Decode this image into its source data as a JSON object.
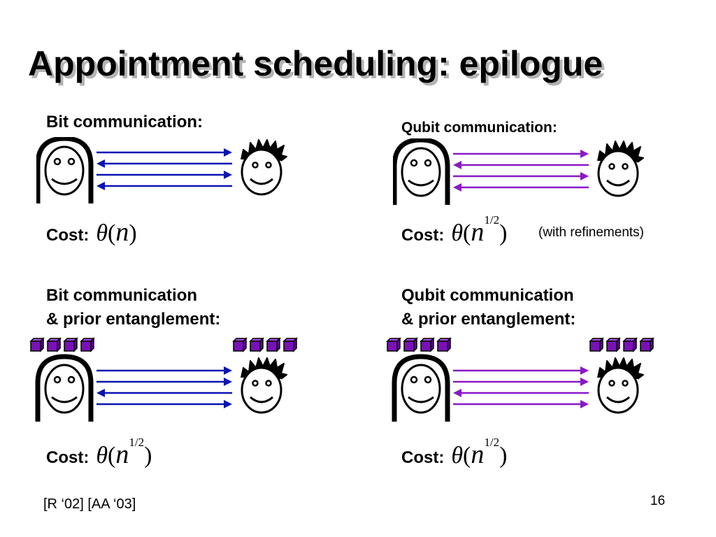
{
  "title": "Appointment scheduling: epilogue",
  "panels": {
    "top_left": {
      "label_line1": "Bit communication:",
      "cost_word": "Cost:",
      "cost_exponent": "",
      "note": ""
    },
    "top_right": {
      "label_line1": "Qubit communication:",
      "cost_word": "Cost:",
      "cost_exponent": "1/2",
      "note": "(with refinements)"
    },
    "bottom_left": {
      "label_line1": "Bit communication",
      "label_line2": "& prior entanglement:",
      "cost_word": "Cost:",
      "cost_exponent": "1/2"
    },
    "bottom_right": {
      "label_line1": "Qubit communication",
      "label_line2": "& prior entanglement:",
      "cost_word": "Cost:",
      "cost_exponent": "1/2"
    }
  },
  "math": {
    "theta": "θ",
    "open_paren": "(",
    "var": "n",
    "close_paren": ")"
  },
  "footer": {
    "citation": "[R ‘02] [AA ‘03]",
    "page_number": "16"
  },
  "colors": {
    "bit_arrow": "#0a14b4",
    "qubit_arrow": "#8a18c8",
    "qubit_cube": "#7a10b8",
    "title_shadow": "#b3b3b3"
  },
  "icons": {
    "alice": "girl-face-icon",
    "bob": "spiky-hair-face-icon",
    "entangled": "qubit-cube-icon",
    "arrow": "message-arrow-icon"
  }
}
